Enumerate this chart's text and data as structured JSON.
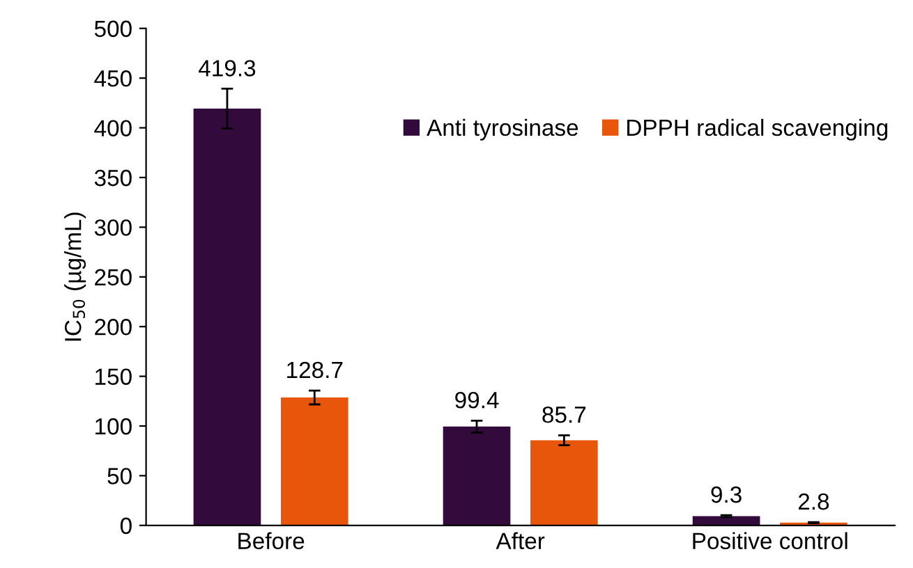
{
  "chart_data": {
    "type": "bar",
    "ylabel": "IC$_{50}$ (µg/mL)",
    "categories": [
      "Before",
      "After",
      "Positive control"
    ],
    "series": [
      {
        "name": "Anti tyrosinase",
        "color": "#330a3c",
        "values": [
          419.3,
          99.4,
          9.3
        ],
        "errors": [
          20,
          6,
          1
        ]
      },
      {
        "name": "DPPH radical scavenging",
        "color": "#e8560c",
        "values": [
          128.7,
          85.7,
          2.8
        ],
        "errors": [
          7,
          5,
          0.5
        ]
      }
    ],
    "ylim": [
      0,
      500
    ],
    "yticks": [
      0,
      50,
      100,
      150,
      200,
      250,
      300,
      350,
      400,
      450,
      500
    ],
    "data_labels": true,
    "grid": false,
    "legend": "top right"
  }
}
